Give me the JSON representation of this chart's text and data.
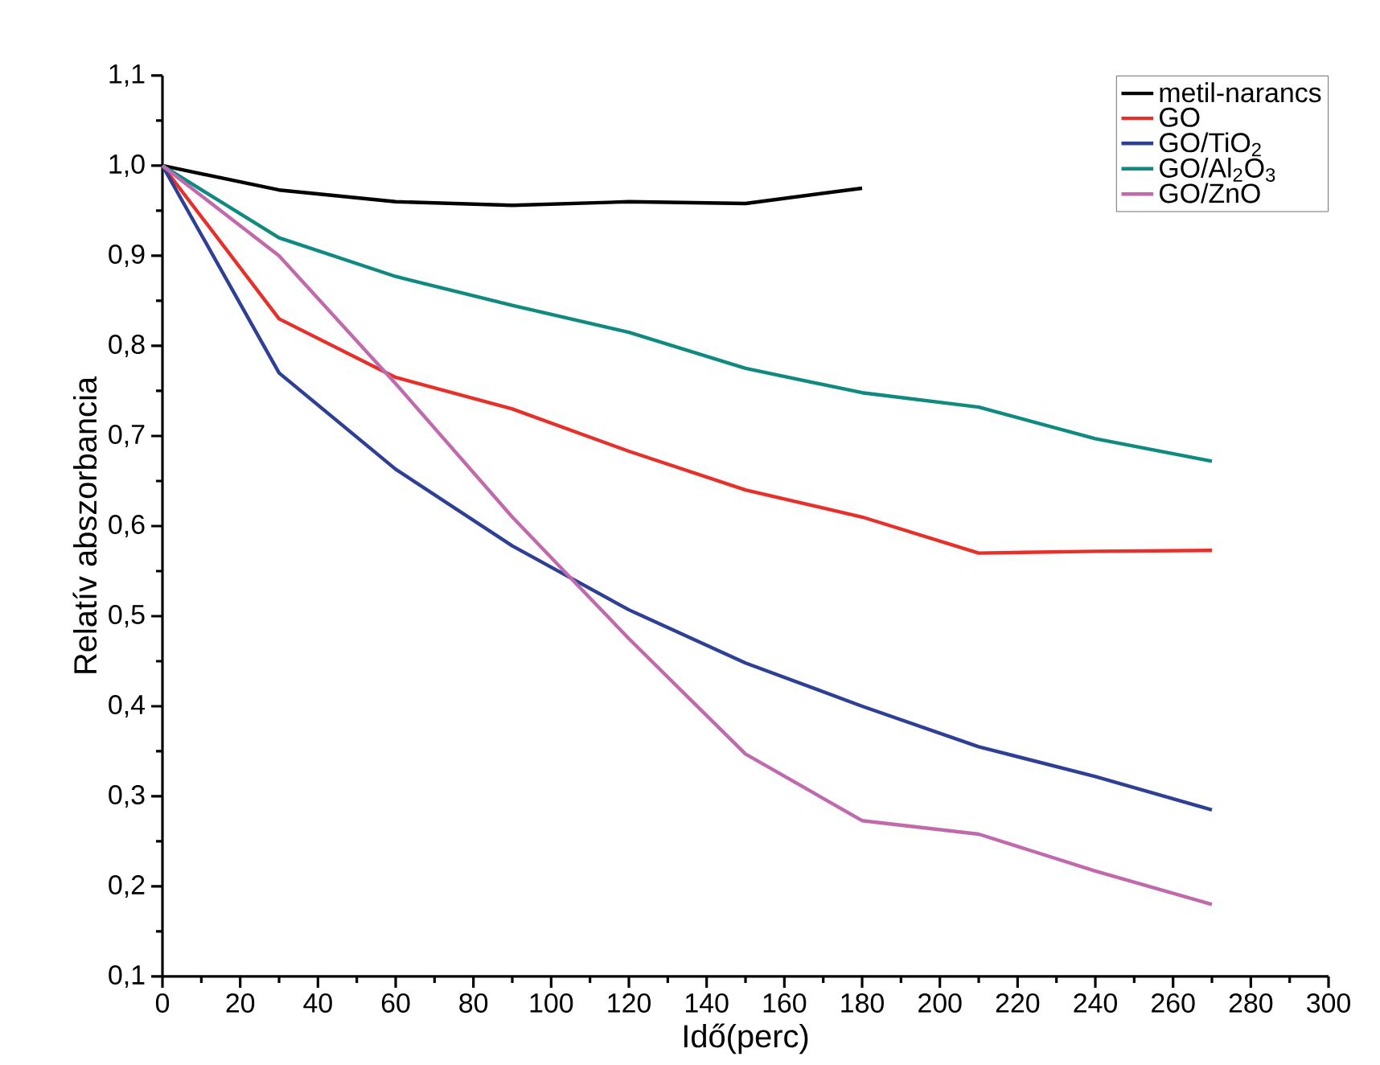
{
  "chart_data": {
    "type": "line",
    "xlabel": "Idő(perc)",
    "ylabel": "Relatív abszorbancia",
    "x": [
      0,
      30,
      60,
      90,
      120,
      150,
      180,
      210,
      240,
      270
    ],
    "series": [
      {
        "name": "metil-narancs",
        "color": "#000000",
        "values": [
          1.0,
          0.973,
          0.96,
          0.956,
          0.96,
          0.958,
          0.975,
          null,
          null,
          null
        ]
      },
      {
        "name": "GO",
        "color": "#e8302a",
        "values": [
          1.0,
          0.83,
          0.765,
          0.73,
          0.683,
          0.64,
          0.61,
          0.57,
          0.572,
          0.573
        ]
      },
      {
        "name": "GO/TiO$_{2}$",
        "color": "#2e3f96",
        "values": [
          1.0,
          0.77,
          0.663,
          0.578,
          0.507,
          0.448,
          0.4,
          0.355,
          0.322,
          0.285
        ]
      },
      {
        "name": "GO/Al$_{2}$O$_{3}$",
        "color": "#0e8a80",
        "values": [
          1.0,
          0.92,
          0.877,
          0.845,
          0.815,
          0.775,
          0.748,
          0.732,
          0.697,
          0.672
        ]
      },
      {
        "name": "GO/ZnO",
        "color": "#c06aad",
        "values": [
          1.0,
          0.9,
          0.758,
          0.61,
          0.475,
          0.347,
          0.273,
          0.258,
          0.217,
          0.18
        ]
      }
    ],
    "xlim": [
      0,
      300
    ],
    "xticks": [
      0,
      20,
      40,
      60,
      80,
      100,
      120,
      140,
      160,
      180,
      200,
      220,
      240,
      260,
      280,
      300
    ],
    "ylim": [
      0.1,
      1.1
    ],
    "yticks": [
      {
        "value": 0.1,
        "label": "0,1"
      },
      {
        "value": 0.2,
        "label": "0,2"
      },
      {
        "value": 0.3,
        "label": "0,3"
      },
      {
        "value": 0.4,
        "label": "0,4"
      },
      {
        "value": 0.5,
        "label": "0,5"
      },
      {
        "value": 0.6,
        "label": "0,6"
      },
      {
        "value": 0.7,
        "label": "0,7"
      },
      {
        "value": 0.8,
        "label": "0,8"
      },
      {
        "value": 0.9,
        "label": "0,9"
      },
      {
        "value": 1.0,
        "label": "1,0"
      },
      {
        "value": 1.1,
        "label": "1,1"
      }
    ],
    "legend": "top right",
    "grid": false,
    "marker": "none",
    "line_style": "solid"
  }
}
